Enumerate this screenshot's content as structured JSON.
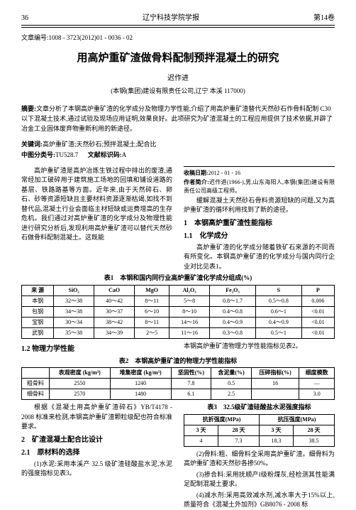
{
  "header": {
    "page_left": "36",
    "journal": "辽宁科技学院学报",
    "page_right": "第14卷"
  },
  "article_id": "文章编号:1008 - 3723(2012)01 - 0036 - 02",
  "title": "用高炉重矿渣做骨料配制预拌混凝土的研究",
  "author": "迟作进",
  "affiliation": "(本钢(集团)建设有限责任公司,辽宁 本溪 117000)",
  "abstract_label": "摘要:",
  "abstract": "文章分析了本钢高炉重矿渣的化学成分及物理力学性能,介绍了用高炉重矿渣替代天然砂石作骨料配制 C30 以下混凝土技术,通过试验及现场应用证明,效果良好。此项研究为矿渣混凝土的工程应用提供了技术依据,并辟了冶金工业固体废弃物重新利用的新途径。",
  "keywords_label": "关键词:",
  "keywords": "高炉重矿渣;天然砂石;预拌混凝土;配合比",
  "class_label": "中图分类号:",
  "class_no": "TU528.7",
  "doc_code_label": "文献标识码:",
  "doc_code": "A",
  "intro_p1": "高炉重矿渣是高炉冶炼生铁过程中排出的废渣,通常经加工破碎用于建筑施工场地的回填和铺设道路的基层、铁路路基等方面。近年来,由于天然碎石、卵石、砂等资源短缺且主要材料资源逐渐枯竭,如找不到替代品,混凝土行业会面临主材短缺或运费增高的生存危机。我们通过对高炉重矿渣的化学成分及物理性能进行研究分析后,发现利用高炉重矿渣可以替代天然砂石做骨料配制混凝土。这既能",
  "intro_p2": "缓解混凝土天然砂石骨料资源短缺的问题,又为高炉重矿渣的循环利用找到了新的途径。",
  "sec1": "1　本钢高炉重矿渣性能指标",
  "sec11": "1.1　化学成分",
  "p11": "高炉重矿渣的化学成分随着铁矿石来源的不同而有所变化。本钢高炉重矿渣的化学成分与国内同行企业对比见表1。",
  "table1_caption": "表1　本钢和国内同行业高炉重矿渣化学成分组成(%)",
  "table1_head": [
    "来 源",
    "SiO₂",
    "CaO",
    "MgO",
    "Al₂O₃",
    "Fe₂O₃",
    "S",
    "P"
  ],
  "table1_rows": [
    [
      "本钢",
      "32～38",
      "40～42",
      "8～11",
      "5～8",
      "0.8～1.7",
      "0.5～0.8",
      "0.006"
    ],
    [
      "包钢",
      "34～38",
      "30～37",
      "6～10",
      "8～10",
      "0.4～0.8",
      "0.6～1",
      "<0.01"
    ],
    [
      "宝钢",
      "30～34",
      "38～42",
      "8～11",
      "14～16",
      "0.4～0.9",
      "0.4～0.9",
      "<0.01"
    ],
    [
      "武钢",
      "35～38",
      "34～39",
      "2～5",
      "11～16",
      "0.3～0.8",
      "0.5～1",
      "<0.01"
    ]
  ],
  "sec12": "1.2 物理力学性能",
  "p12": "本钢高炉重矿渣物理力学性能指标见表2。",
  "table2_caption": "表2　本钢高炉重矿渣的物理力学性能指标",
  "table2_head": [
    "",
    "表观密度 (kg/m³)",
    "堆集密度 (kg/m³)",
    "坚固性(%)",
    "含泥量(%)",
    "压碎指标(%)",
    "细度模数"
  ],
  "table2_rows": [
    [
      "粗骨料",
      "2550",
      "1240",
      "7.8",
      "0.5",
      "16",
      "—"
    ],
    [
      "细骨料",
      "2570",
      "1480",
      "6.1",
      "2.5",
      "",
      "3.0"
    ]
  ],
  "p12b1": "根据《混凝土用高炉重矿渣碎石》YB/T4178 - 2008 标准来检测,本钢高炉重矿渣颗粒级配也符合标准要求。",
  "sec2": "2　矿渣混凝土配合比设计",
  "sec21": "2.1　原材料的选择",
  "p21_1": "(1)水泥:采用本溪产 32.5 级矿渣硅酸盐水泥,水泥的强度指标见表3。",
  "table3_caption": "表3　32.5级矿渣硅酸盐水泥强度指标",
  "table3_head1": [
    "抗折强度(MPa)",
    "抗压强度(MPa)"
  ],
  "table3_head2": [
    "3 天",
    "28 天",
    "3 天",
    "28 天"
  ],
  "table3_row": [
    "4",
    "7.3",
    "18.3",
    "38.5"
  ],
  "p21_2": "(2)骨料:粗、细骨料全采用高炉重矿渣。细骨料为高炉重矿渣和天然砂各掺50%。",
  "p21_3": "(3)掺合料:采用抚顺产Ⅰ级粉煤灰,经检测其性能满足配制混凝土要求。",
  "p21_4": "(4)减水剂:采用高效减水剂,减水率大于15%以上,质量符合《混凝土外加剂》GB8076 - 2008 标",
  "footnote_date_label": "收稿日期:",
  "footnote_date": "2012 - 01 - 16",
  "footnote_author_label": "作者简介:",
  "footnote_author": "迟作进(1966-),男,山东海阳人,本钢(集团)建设有限责任公司高级工程师。"
}
